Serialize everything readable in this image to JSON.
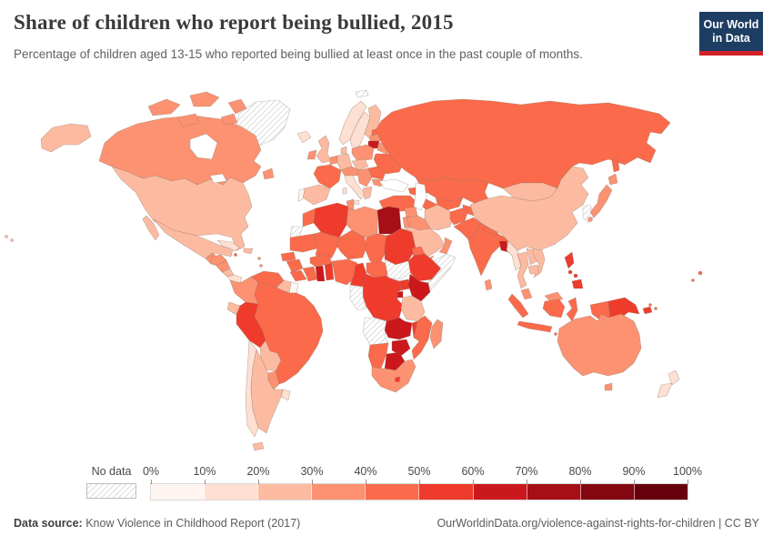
{
  "header": {
    "title": "Share of children who report being bullied, 2015",
    "subtitle": "Percentage of children aged 13-15 who reported being bullied at least once in the past couple of months."
  },
  "logo": {
    "line1": "Our World",
    "line2": "in Data",
    "bg_color": "#1d3d63",
    "accent_color": "#cf2128"
  },
  "legend": {
    "no_data_label": "No data",
    "tick_labels": [
      "0%",
      "10%",
      "20%",
      "30%",
      "40%",
      "50%",
      "60%",
      "70%",
      "80%",
      "90%",
      "100%"
    ]
  },
  "footer": {
    "source_label": "Data source:",
    "source_value": "Know Violence in Childhood Report (2017)",
    "citation": "OurWorldinData.org/violence-against-rights-for-children | CC BY"
  },
  "chart_data": {
    "type": "choropleth",
    "title": "Share of children who report being bullied",
    "year": 2015,
    "unit": "%",
    "bins": [
      0,
      10,
      20,
      30,
      40,
      50,
      60,
      70,
      80,
      90,
      100
    ],
    "palette": [
      "#fff5f0",
      "#fee0d2",
      "#fcbba1",
      "#fc9272",
      "#fb6a4a",
      "#ef3b2c",
      "#cb181d",
      "#a50f15",
      "#820711",
      "#67000d"
    ],
    "no_data_style": "diagonal-hatch",
    "values": {
      "greenland": null,
      "canada": 35,
      "usa": 22,
      "mexico": 21,
      "guatemala": 38,
      "honduras": 32,
      "nicaragua": 35,
      "costa-rica": 25,
      "panama": 15,
      "cuba": 12,
      "hispaniola": 28,
      "jamaica": 40,
      "antilles": 30,
      "colombia": 38,
      "venezuela": 41,
      "guyana": 22,
      "suriname": 8,
      "ecuador": 22,
      "peru": 52,
      "brazil": 42,
      "bolivia": 25,
      "paraguay": 35,
      "uruguay": 18,
      "chile": 15,
      "argentina": 24,
      "iceland": 15,
      "norway": 12,
      "sweden": 14,
      "finland": 25,
      "estonia": 40,
      "latvia": 30,
      "lithuania": 60,
      "belarus": 35,
      "uk": 25,
      "ireland": 35,
      "denmark": 25,
      "netherlands": 30,
      "germany": 25,
      "poland": 31,
      "czechia": 28,
      "france": 40,
      "spain": 28,
      "portugal": 5,
      "italy": 12,
      "switzerland-austria": 30,
      "balkans": 30,
      "greece": 22,
      "romania": 40,
      "bulgaria": 35,
      "ukraine": 45,
      "russia": 40,
      "svalbard": null,
      "turkey": 42,
      "caucasus": 40,
      "syria": 35,
      "levant": 34,
      "iraq": 37,
      "iran": 22,
      "saudi-arabia": 22,
      "yemen": 37,
      "oman": 34,
      "kazakhstan": 42,
      "kyrgyzstan": 46,
      "tajikistan": 48,
      "uzbekistan": 45,
      "turkmenistan": 44,
      "afghanistan": 41,
      "pakistan": 44,
      "india": 42,
      "nepal": 43,
      "bangladesh": 65,
      "sri-lanka": 37,
      "myanmar": 12,
      "thailand": 25,
      "laos": 25,
      "vietnam": 25,
      "cambodia": 22,
      "malaysia": 32,
      "indonesia": 46,
      "philippines": 52,
      "papua-new-guinea": 52,
      "china": 22,
      "mongolia": 25,
      "korea": null,
      "japan": 35,
      "morocco": 42,
      "western-sahara": null,
      "algeria": 52,
      "tunisia": 37,
      "libya": 37,
      "egypt": 70,
      "mauritania": 41,
      "mali": 47,
      "niger": 47,
      "chad": 44,
      "sudan": 51,
      "eritrea": 40,
      "ethiopia": 52,
      "somalia": null,
      "senegal": 42,
      "guinea": 44,
      "sierra-leone-liberia": 41,
      "ivory-coast": 48,
      "ghana": 62,
      "togo-benin": 50,
      "burkina-faso": 45,
      "nigeria": 48,
      "cameroon": 52,
      "central-african-republic": 47,
      "south-sudan": null,
      "uganda": 56,
      "kenya": 61,
      "rwanda-burundi": 62,
      "dr-congo": 51,
      "gabon-congo": null,
      "tanzania": 27,
      "angola": null,
      "zambia": 63,
      "malawi": 55,
      "mozambique": 45,
      "zimbabwe": 62,
      "namibia": 47,
      "botswana": 61,
      "south-africa": 37,
      "lesotho": 55,
      "madagascar": 37,
      "australia": 32,
      "new-zealand": 18,
      "fiji": 45,
      "vanuatu": 45,
      "solomon-islands": 45
    }
  }
}
